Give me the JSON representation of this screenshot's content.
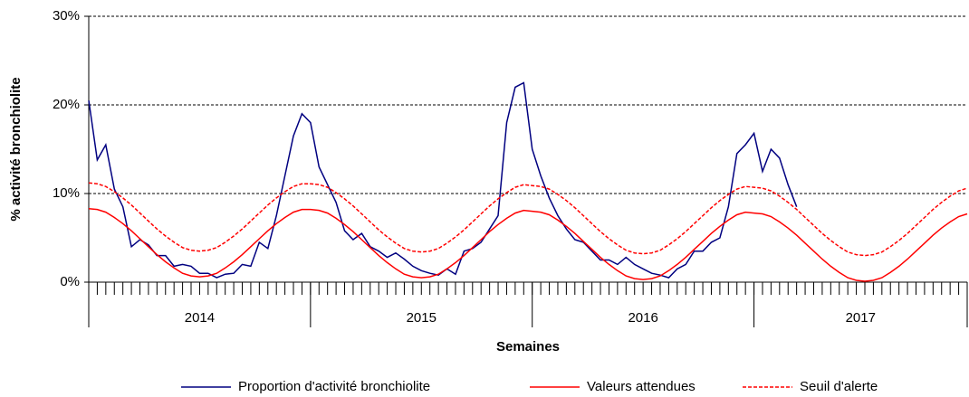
{
  "chart_data": {
    "type": "line",
    "y_label": "% activité bronchiolite",
    "x_label": "Semaines",
    "year_groups": [
      "2014",
      "2015",
      "2016",
      "2017"
    ],
    "ylim": [
      0,
      30
    ],
    "yticks": [
      {
        "value": 0,
        "label": "0%"
      },
      {
        "value": 10,
        "label": "10%"
      },
      {
        "value": 20,
        "label": "20%"
      },
      {
        "value": 30,
        "label": "30%"
      }
    ],
    "grid": true,
    "legend": "bottom",
    "series": [
      {
        "name": "Proportion d'activité bronchiolite",
        "color": "#000080",
        "dash": "solid",
        "values": [
          20.5,
          13.8,
          15.5,
          10.5,
          8.5,
          4.0,
          4.8,
          4.2,
          3.0,
          3.0,
          1.8,
          2.0,
          1.8,
          1.0,
          1.0,
          0.5,
          0.9,
          1.0,
          2.0,
          1.8,
          4.5,
          3.8,
          7.5,
          12.0,
          16.5,
          19.0,
          18.0,
          13.0,
          11.0,
          9.0,
          5.8,
          4.8,
          5.5,
          4.0,
          3.5,
          2.8,
          3.3,
          2.6,
          1.8,
          1.3,
          1.0,
          0.8,
          1.5,
          0.9,
          3.5,
          3.8,
          4.5,
          6.0,
          7.5,
          18.0,
          22.0,
          22.5,
          15.0,
          12.0,
          9.5,
          7.5,
          6.0,
          4.8,
          4.5,
          3.5,
          2.5,
          2.5,
          2.0,
          2.8,
          2.0,
          1.5,
          1.0,
          0.8,
          0.5,
          1.5,
          2.0,
          3.5,
          3.5,
          4.5,
          5.0,
          8.5,
          14.5,
          15.5,
          16.8,
          12.5,
          15.0,
          14.0,
          11.0,
          8.5,
          null,
          null,
          null,
          null,
          null,
          null,
          null,
          null,
          null,
          null,
          null,
          null,
          null,
          null,
          null,
          null,
          null,
          null,
          null,
          null
        ]
      },
      {
        "name": "Valeurs attendues",
        "color": "#ff0000",
        "dash": "solid",
        "values": [
          8.3,
          8.2,
          7.9,
          7.3,
          6.6,
          5.8,
          4.9,
          4.0,
          3.1,
          2.3,
          1.6,
          1.0,
          0.7,
          0.6,
          0.7,
          1.0,
          1.6,
          2.3,
          3.1,
          4.0,
          4.9,
          5.8,
          6.6,
          7.3,
          7.9,
          8.2,
          8.2,
          8.1,
          7.8,
          7.2,
          6.5,
          5.7,
          4.8,
          3.9,
          3.0,
          2.2,
          1.5,
          0.9,
          0.6,
          0.5,
          0.6,
          0.9,
          1.5,
          2.2,
          3.0,
          3.9,
          4.8,
          5.7,
          6.5,
          7.2,
          7.8,
          8.1,
          8.0,
          7.9,
          7.6,
          7.0,
          6.3,
          5.5,
          4.6,
          3.7,
          2.8,
          2.0,
          1.3,
          0.7,
          0.4,
          0.3,
          0.4,
          0.7,
          1.3,
          2.0,
          2.8,
          3.7,
          4.6,
          5.5,
          6.3,
          7.0,
          7.6,
          7.9,
          7.8,
          7.7,
          7.4,
          6.8,
          6.1,
          5.3,
          4.4,
          3.5,
          2.6,
          1.8,
          1.1,
          0.5,
          0.2,
          0.1,
          0.2,
          0.5,
          1.1,
          1.8,
          2.6,
          3.5,
          4.4,
          5.3,
          6.1,
          6.8,
          7.4,
          7.7
        ]
      },
      {
        "name": "Seuil d'alerte",
        "color": "#ff0000",
        "dash": "dashed",
        "values": [
          11.2,
          11.1,
          10.8,
          10.2,
          9.5,
          8.7,
          7.8,
          6.9,
          6.0,
          5.2,
          4.5,
          3.9,
          3.6,
          3.5,
          3.6,
          3.9,
          4.5,
          5.2,
          6.0,
          6.9,
          7.8,
          8.7,
          9.5,
          10.2,
          10.8,
          11.1,
          11.1,
          11.0,
          10.7,
          10.1,
          9.4,
          8.6,
          7.7,
          6.8,
          5.9,
          5.1,
          4.4,
          3.8,
          3.5,
          3.4,
          3.5,
          3.8,
          4.4,
          5.1,
          5.9,
          6.8,
          7.7,
          8.6,
          9.4,
          10.1,
          10.7,
          11.0,
          10.9,
          10.8,
          10.5,
          9.9,
          9.2,
          8.4,
          7.5,
          6.6,
          5.7,
          4.9,
          4.2,
          3.6,
          3.3,
          3.2,
          3.3,
          3.6,
          4.2,
          4.9,
          5.7,
          6.6,
          7.5,
          8.4,
          9.2,
          9.9,
          10.5,
          10.8,
          10.7,
          10.6,
          10.3,
          9.7,
          9.0,
          8.2,
          7.3,
          6.4,
          5.5,
          4.7,
          4.0,
          3.4,
          3.1,
          3.0,
          3.1,
          3.4,
          4.0,
          4.7,
          5.5,
          6.4,
          7.3,
          8.2,
          9.0,
          9.7,
          10.3,
          10.6
        ]
      }
    ]
  }
}
